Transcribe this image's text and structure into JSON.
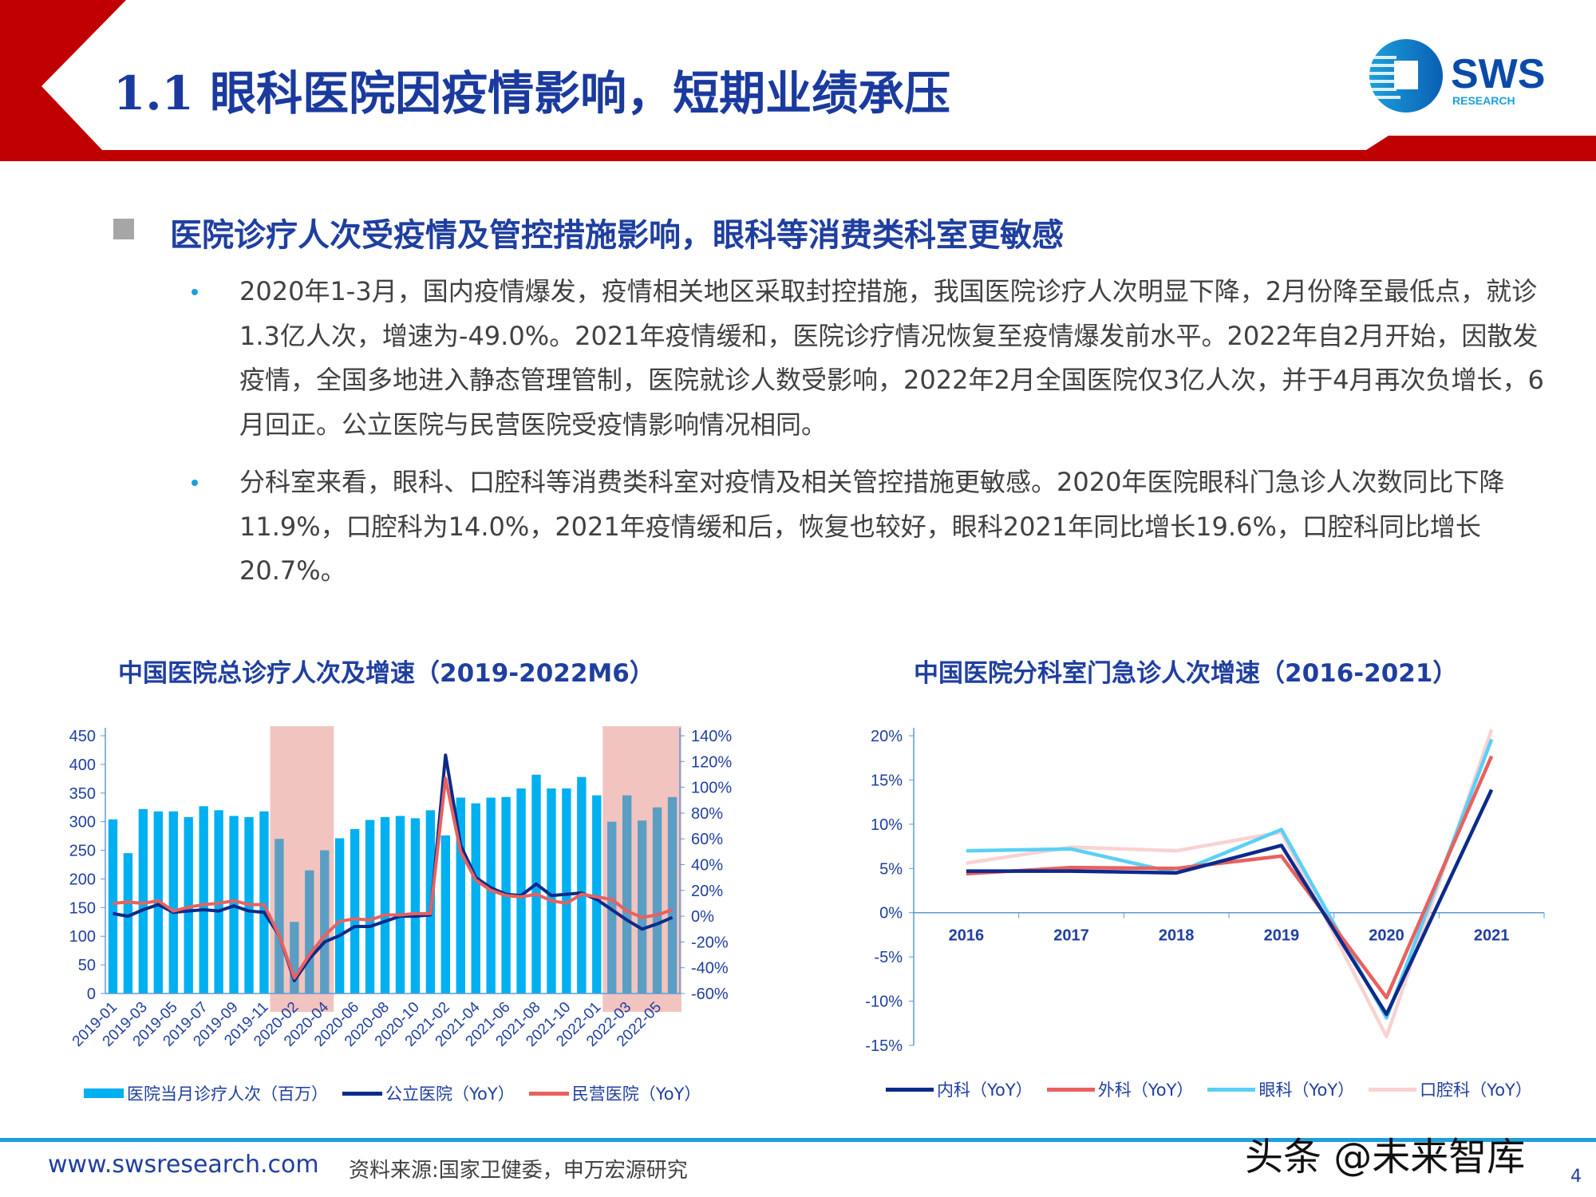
{
  "header": {
    "title": "1.1 眼科医院因疫情影响，短期业绩承压",
    "logo_text": "SWS",
    "logo_sub": "RESEARCH",
    "colors": {
      "brand_red": "#c00000",
      "title_blue": "#1a3a9e"
    }
  },
  "section": {
    "title": "医院诊疗人次受疫情及管控措施影响，眼科等消费类科室更敏感"
  },
  "bullets": [
    "2020年1-3月，国内疫情爆发，疫情相关地区采取封控措施，我国医院诊疗人次明显下降，2月份降至最低点，就诊1.3亿人次，增速为-49.0%。2021年疫情缓和，医院诊疗情况恢复至疫情爆发前水平。2022年自2月开始，因散发疫情，全国多地进入静态管理管制，医院就诊人数受影响，2022年2月全国医院仅3亿人次，并于4月再次负增长，6月回正。公立医院与民营医院受疫情影响情况相同。",
    "分科室来看，眼科、口腔科等消费类科室对疫情及相关管控措施更敏感。2020年医院眼科门急诊人次数同比下降11.9%，口腔科为14.0%，2021年疫情缓和后，恢复也较好，眼科2021年同比增长19.6%，口腔科同比增长20.7%。"
  ],
  "chart_data": [
    {
      "type": "bar+line",
      "title": "中国医院总诊疗人次及增速（2019-2022M6）",
      "categories": [
        "2019-01",
        "2019-02",
        "2019-03",
        "2019-04",
        "2019-05",
        "2019-06",
        "2019-07",
        "2019-08",
        "2019-09",
        "2019-10",
        "2019-11",
        "2019-12",
        "2020-02",
        "2020-03",
        "2020-04",
        "2020-05",
        "2020-06",
        "2020-07",
        "2020-08",
        "2020-09",
        "2020-10",
        "2020-11",
        "2021-02",
        "2021-03",
        "2021-04",
        "2021-05",
        "2021-06",
        "2021-07",
        "2021-08",
        "2021-09",
        "2021-10",
        "2021-11",
        "2022-01",
        "2022-02",
        "2022-03",
        "2022-04",
        "2022-05",
        "2022-06"
      ],
      "tick_labels": [
        "2019-01",
        "2019-03",
        "2019-05",
        "2019-07",
        "2019-09",
        "2019-11",
        "2020-02",
        "2020-04",
        "2020-06",
        "2020-08",
        "2020-10",
        "2021-02",
        "2021-04",
        "2021-06",
        "2021-08",
        "2021-10",
        "2022-01",
        "2022-03",
        "2022-05"
      ],
      "left_axis": {
        "min": 0,
        "max": 450,
        "ticks": [
          "0",
          "50",
          "100",
          "150",
          "200",
          "250",
          "300",
          "350",
          "400",
          "450"
        ]
      },
      "right_axis": {
        "min": -60,
        "max": 140,
        "ticks": [
          "-60%",
          "-40%",
          "-20%",
          "0%",
          "20%",
          "40%",
          "60%",
          "80%",
          "100%",
          "120%",
          "140%"
        ]
      },
      "shaded_ranges": [
        [
          "2019-12",
          "2020-04"
        ],
        [
          "2022-02",
          "2022-06"
        ]
      ],
      "series": [
        {
          "name": "医院当月诊疗人次（百万）",
          "kind": "bar",
          "axis": "left",
          "color": "#00b0f0",
          "values": [
            304,
            245,
            322,
            318,
            318,
            308,
            327,
            320,
            310,
            308,
            318,
            270,
            125,
            215,
            250,
            271,
            287,
            303,
            308,
            310,
            306,
            320,
            276,
            342,
            332,
            342,
            343,
            358,
            382,
            358,
            358,
            378,
            346,
            300,
            346,
            302,
            325,
            343
          ]
        },
        {
          "name": "公立医院（YoY）",
          "kind": "line",
          "axis": "right",
          "color": "#0c2a8a",
          "values": [
            2,
            0,
            5,
            9,
            3,
            4,
            5,
            4,
            8,
            4,
            3,
            -15,
            -50,
            -33,
            -20,
            -15,
            -8,
            -8,
            -4,
            0,
            0,
            1,
            125,
            55,
            30,
            22,
            17,
            16,
            25,
            16,
            17,
            18,
            13,
            5,
            -3,
            -10,
            -6,
            -1
          ]
        },
        {
          "name": "民营医院（YoY）",
          "kind": "line",
          "axis": "right",
          "color": "#e8615f",
          "values": [
            10,
            11,
            10,
            12,
            4,
            7,
            9,
            10,
            12,
            9,
            9,
            -15,
            -48,
            -30,
            -15,
            -4,
            -2,
            -3,
            1,
            1,
            2,
            2,
            107,
            50,
            28,
            20,
            16,
            15,
            17,
            12,
            10,
            17,
            15,
            13,
            4,
            -1,
            1,
            5
          ]
        }
      ],
      "legend": "bottom"
    },
    {
      "type": "line",
      "title": "中国医院分科室门急诊人次增速（2016-2021）",
      "categories": [
        "2016",
        "2017",
        "2018",
        "2019",
        "2020",
        "2021"
      ],
      "y_axis": {
        "min": -15,
        "max": 20,
        "ticks": [
          "-15%",
          "-10%",
          "-5%",
          "0%",
          "5%",
          "10%",
          "15%",
          "20%"
        ]
      },
      "series": [
        {
          "name": "内科（YoY）",
          "color": "#0c2a8a",
          "values": [
            4.7,
            4.7,
            4.5,
            7.6,
            -11.5,
            13.9
          ]
        },
        {
          "name": "外科（YoY）",
          "color": "#e8615f",
          "values": [
            4.4,
            5.1,
            5.0,
            6.4,
            -9.6,
            17.7
          ]
        },
        {
          "name": "眼科（YoY）",
          "color": "#5bd0f5",
          "values": [
            7.0,
            7.2,
            4.5,
            9.4,
            -11.9,
            19.6
          ]
        },
        {
          "name": "口腔科（YoY）",
          "color": "#f8d2d2",
          "values": [
            5.6,
            7.4,
            7.0,
            9.1,
            -14.0,
            20.7
          ]
        }
      ],
      "legend": "bottom"
    }
  ],
  "footer": {
    "url": "www.swsresearch.com",
    "source": "资料来源:国家卫健委，申万宏源研究",
    "watermark": "头条 @未来智库",
    "page": "4"
  }
}
